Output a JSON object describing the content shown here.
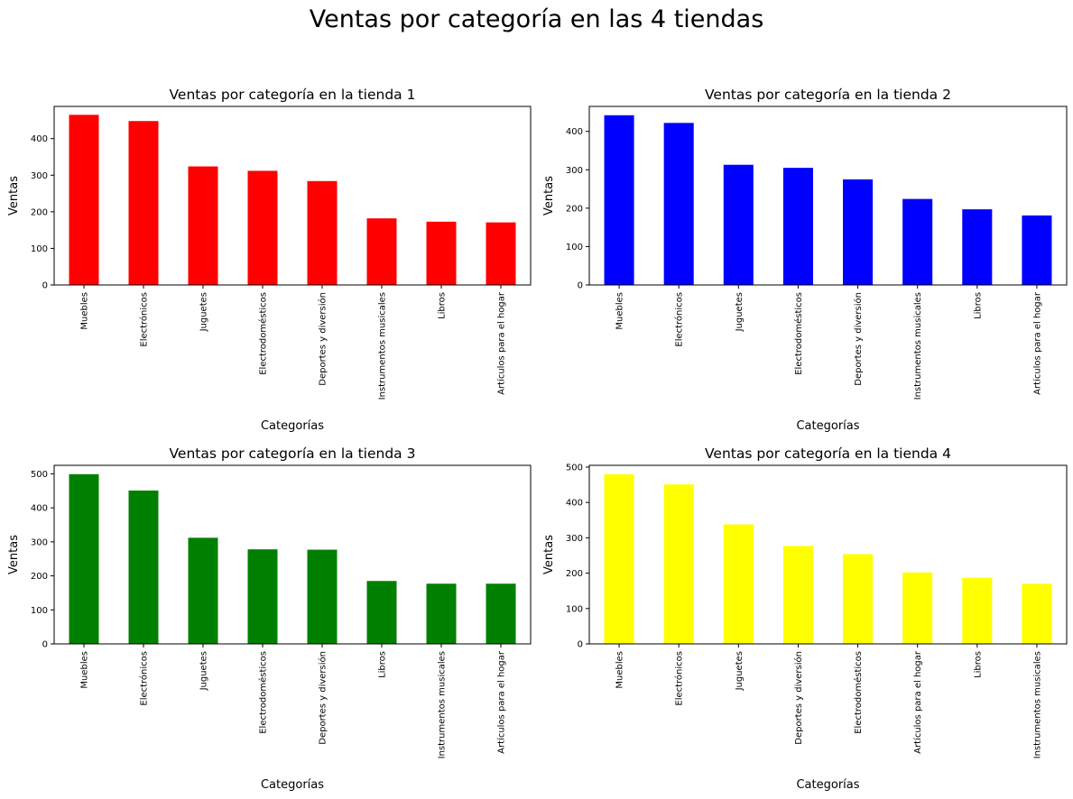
{
  "suptitle": "Ventas por categoría en las 4 tiendas",
  "chart_data": [
    {
      "type": "bar",
      "title": "Ventas por categoría en la tienda 1",
      "xlabel": "Categorías",
      "ylabel": "Ventas",
      "color": "#ff0000",
      "ylim": [
        0,
        488
      ],
      "yticks": [
        0,
        100,
        200,
        300,
        400
      ],
      "categories": [
        "Muebles",
        "Electrónicos",
        "Juguetes",
        "Electrodomésticos",
        "Deportes y diversión",
        "Instrumentos musicales",
        "Libros",
        "Artículos para el hogar"
      ],
      "values": [
        465,
        448,
        324,
        312,
        284,
        182,
        173,
        171
      ]
    },
    {
      "type": "bar",
      "title": "Ventas por categoría en la tienda 2",
      "xlabel": "Categorías",
      "ylabel": "Ventas",
      "color": "#0000ff",
      "ylim": [
        0,
        465
      ],
      "yticks": [
        0,
        100,
        200,
        300,
        400
      ],
      "categories": [
        "Muebles",
        "Electrónicos",
        "Juguetes",
        "Electrodomésticos",
        "Deportes y diversión",
        "Instrumentos musicales",
        "Libros",
        "Artículos para el hogar"
      ],
      "values": [
        442,
        422,
        313,
        305,
        275,
        224,
        197,
        181
      ]
    },
    {
      "type": "bar",
      "title": "Ventas por categoría en la tienda 3",
      "xlabel": "Categorías",
      "ylabel": "Ventas",
      "color": "#008000",
      "ylim": [
        0,
        525
      ],
      "yticks": [
        0,
        100,
        200,
        300,
        400,
        500
      ],
      "categories": [
        "Muebles",
        "Electrónicos",
        "Juguetes",
        "Electrodomésticos",
        "Deportes y diversión",
        "Libros",
        "Instrumentos musicales",
        "Artículos para el hogar"
      ],
      "values": [
        499,
        451,
        312,
        278,
        277,
        185,
        177,
        177
      ]
    },
    {
      "type": "bar",
      "title": "Ventas por categoría en la tienda 4",
      "xlabel": "Categorías",
      "ylabel": "Ventas",
      "color": "#ffff00",
      "ylim": [
        0,
        505
      ],
      "yticks": [
        0,
        100,
        200,
        300,
        400,
        500
      ],
      "categories": [
        "Muebles",
        "Electrónicos",
        "Juguetes",
        "Deportes y diversión",
        "Electrodomésticos",
        "Artículos para el hogar",
        "Libros",
        "Instrumentos musicales"
      ],
      "values": [
        480,
        451,
        338,
        277,
        254,
        202,
        187,
        170
      ]
    }
  ]
}
